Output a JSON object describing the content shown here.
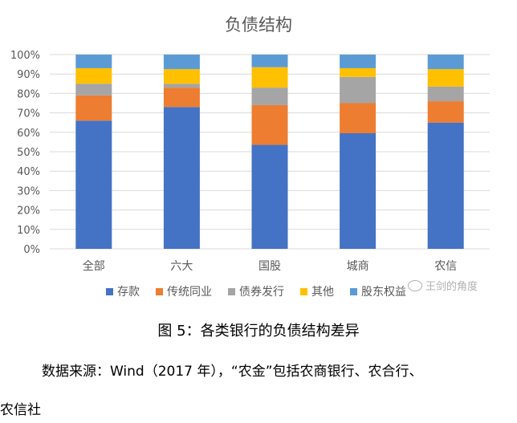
{
  "chart_data": {
    "type": "bar",
    "stacked": true,
    "title": "负债结构",
    "categories": [
      "全部",
      "六大",
      "国股",
      "城商",
      "农信"
    ],
    "yticks": [
      "0%",
      "10%",
      "20%",
      "30%",
      "40%",
      "50%",
      "60%",
      "70%",
      "80%",
      "90%",
      "100%"
    ],
    "ylim": [
      0,
      100
    ],
    "grid": true,
    "legend_position": "bottom",
    "series": [
      {
        "name": "存款",
        "color": "#4472C4",
        "values": [
          66,
          73,
          53.5,
          59.5,
          65
        ]
      },
      {
        "name": "传统同业",
        "color": "#ED7D31",
        "values": [
          13,
          10,
          20.5,
          15.5,
          11
        ]
      },
      {
        "name": "债券发行",
        "color": "#A5A5A5",
        "values": [
          6,
          2,
          9,
          13.5,
          7.5
        ]
      },
      {
        "name": "其他",
        "color": "#FFC000",
        "values": [
          8,
          7.5,
          10.5,
          4.5,
          9
        ]
      },
      {
        "name": "股东权益",
        "color": "#5B9BD5",
        "values": [
          7,
          7.5,
          6.5,
          7,
          7.5
        ]
      }
    ]
  },
  "caption": "图 5：各类银行的负债结构差异",
  "source_line1": "数据来源：Wind（2017 年），“农金”包括农商银行、农合行、",
  "source_line2": "农信社",
  "watermark": "王剑的角度"
}
